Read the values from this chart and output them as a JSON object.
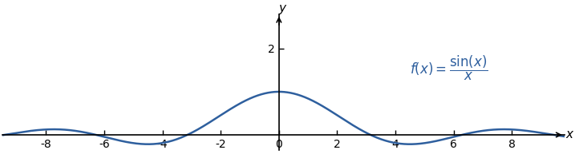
{
  "x_min": -9.5,
  "x_max": 9.8,
  "y_min": -0.35,
  "y_max": 2.8,
  "line_color": "#2e5f9e",
  "line_width": 1.8,
  "x_ticks": [
    -8,
    -6,
    -4,
    -2,
    0,
    2,
    4,
    6,
    8
  ],
  "y_ticks": [
    2
  ],
  "xlabel": "x",
  "ylabel": "y",
  "annotation_color": "#2e5f9e",
  "annotation_fontsize": 12,
  "background_color": "#ffffff",
  "axis_linewidth": 1.2,
  "spine_color": "#000000",
  "tick_fontsize": 10
}
